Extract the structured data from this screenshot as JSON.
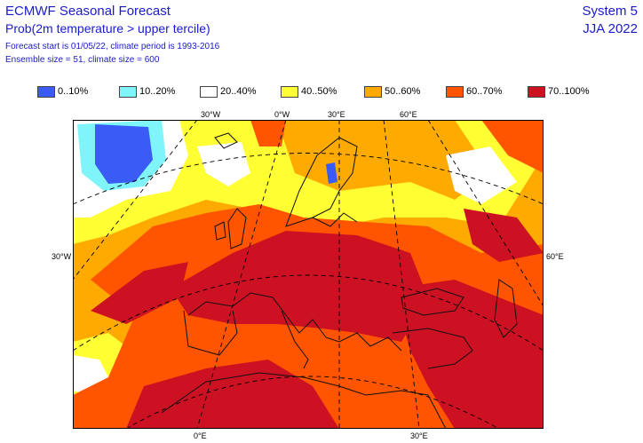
{
  "header": {
    "title": "ECMWF Seasonal Forecast",
    "subtitle": "Prob(2m temperature > upper tercile)",
    "line3": "Forecast start is 01/05/22, climate period is 1993-2016",
    "line4": "Ensemble size = 51, climate size = 600",
    "system": "System 5",
    "season": "JJA 2022"
  },
  "legend": [
    {
      "label": "0..10%",
      "color": "#3a5cf5"
    },
    {
      "label": "10..20%",
      "color": "#7ff5fa"
    },
    {
      "label": "20..40%",
      "color": "#ffffff"
    },
    {
      "label": "40..50%",
      "color": "#ffff33"
    },
    {
      "label": "50..60%",
      "color": "#ffaa00"
    },
    {
      "label": "60..70%",
      "color": "#ff5500"
    },
    {
      "label": "70..100%",
      "color": "#cc1122"
    }
  ],
  "axes": {
    "top": [
      "30°W",
      "0°W",
      "30°E",
      "60°E"
    ],
    "left": "30°W",
    "right": "60°E",
    "bottom": [
      "0°E",
      "30°E"
    ]
  }
}
